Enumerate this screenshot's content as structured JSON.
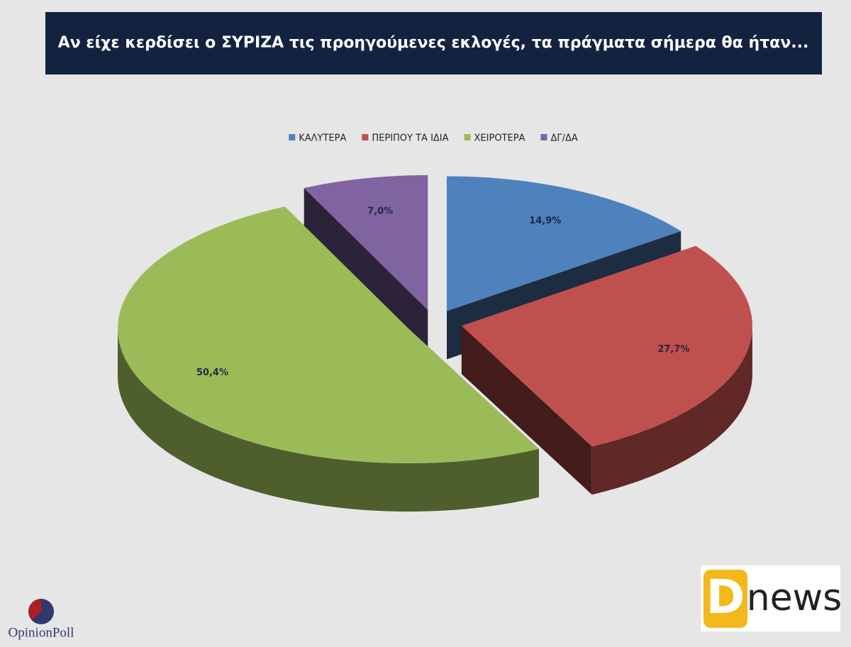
{
  "chart_data": {
    "type": "pie3d",
    "title": "Αν είχε κερδίσει ο ΣΥΡΙΖΑ τις προηγούμενες εκλογές, τα πράγματα σήμερα θα ήταν...",
    "categories": [
      "ΚΑΛΥΤΕΡΑ",
      "ΠΕΡΙΠΟΥ ΤΑ ΙΔΙΑ",
      "ΧΕΙΡΟΤΕΡΑ",
      "ΔΓ/ΔΑ"
    ],
    "values": [
      14.9,
      27.7,
      50.4,
      7.0
    ],
    "value_labels": [
      "14,9%",
      "27,7%",
      "50,4%",
      "7,0%"
    ],
    "colors": [
      "#4f81bd",
      "#c0504d",
      "#9bbb59",
      "#8064a2"
    ],
    "legend": "top"
  },
  "branding": {
    "left_logo": "OpinionPoll",
    "right_logo_letter": "D",
    "right_logo_word": "news"
  }
}
